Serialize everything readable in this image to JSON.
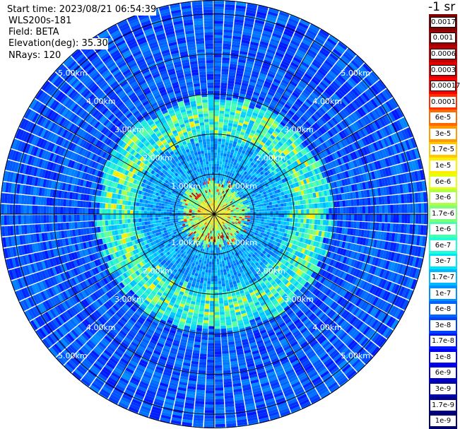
{
  "info": {
    "start_time": "Start time: 2023/08/21 06:54:39",
    "serial": "WLS200s-181",
    "field": "Field: BETA",
    "elevation": "Elevation(deg): 35.30",
    "nrays": "NRays: 120"
  },
  "unit_label": "-1 sr",
  "colorbar": {
    "labels": [
      "0.0017",
      "0.001",
      "0.0006",
      "0.0003",
      "0.00017",
      "0.0001",
      "6e-5",
      "3e-5",
      "1.7e-5",
      "1e-5",
      "6e-6",
      "3e-6",
      "1.7e-6",
      "1e-6",
      "6e-7",
      "3e-7",
      "1.7e-7",
      "1e-7",
      "6e-8",
      "3e-8",
      "1.7e-8",
      "1e-8",
      "6e-9",
      "3e-9",
      "1.7e-9",
      "1e-9"
    ],
    "colors": [
      "#7f0000",
      "#a00000",
      "#c00000",
      "#e00000",
      "#ff0000",
      "#ff3000",
      "#ff6a00",
      "#ff9a00",
      "#ffc800",
      "#fff000",
      "#e4ff12",
      "#b0ff46",
      "#7cff7a",
      "#48ffae",
      "#22ffd6",
      "#00e4f8",
      "#00b8ff",
      "#0090ff",
      "#0064ff",
      "#0040ff",
      "#0018ff",
      "#0000f0",
      "#0000c8",
      "#0000a8",
      "#000088",
      "#00006a"
    ]
  },
  "chart_data": {
    "type": "polar-ppi",
    "field": "BETA",
    "unit": "sr-1",
    "nrays": 120,
    "range_rings_km": [
      1,
      2,
      3,
      4,
      5
    ],
    "ring_labels": [
      "1.00km",
      "2.00km",
      "3.00km",
      "4.00km",
      "5.00km"
    ],
    "max_range_km": 5.35,
    "color_scale": "log",
    "value_range": [
      1e-09,
      0.0017
    ],
    "features": [
      {
        "range_km": [
          0.1,
          0.8
        ],
        "typical_value": 3e-05
      },
      {
        "range_km": [
          0.8,
          1.9
        ],
        "typical_value": 3e-07
      },
      {
        "range_km": [
          1.9,
          2.9
        ],
        "typical_value": 1.7e-06
      },
      {
        "range_km": [
          2.9,
          5.35
        ],
        "typical_value": 3e-08
      }
    ]
  }
}
